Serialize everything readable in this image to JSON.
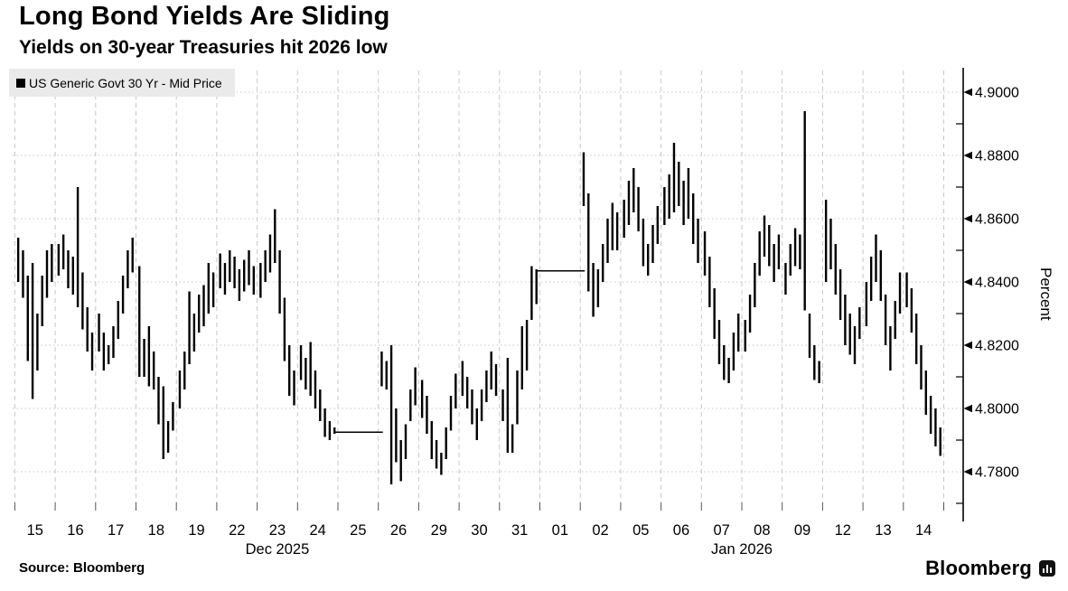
{
  "header": {
    "title": "Long Bond Yields Are Sliding",
    "subtitle": "Yields on 30-year Treasuries hit 2026 low"
  },
  "legend": {
    "marker": "black-square-icon",
    "label": "US Generic Govt 30 Yr - Mid Price"
  },
  "y_axis": {
    "title": "Percent",
    "tick_labels": [
      "4.9000",
      "4.8800",
      "4.8600",
      "4.8400",
      "4.8200",
      "4.8000",
      "4.7800"
    ],
    "tick_values": [
      4.9,
      4.88,
      4.86,
      4.84,
      4.82,
      4.8,
      4.78
    ],
    "minor_tick_values": [
      4.89,
      4.87,
      4.85,
      4.83,
      4.81,
      4.79,
      4.77
    ],
    "side": "right"
  },
  "x_axis": {
    "months": [
      {
        "label": "Dec 2025",
        "center_day_index": 6
      },
      {
        "label": "Jan 2026",
        "center_day_index": 17.5
      }
    ]
  },
  "footer": {
    "source": "Source: Bloomberg",
    "brand": "Bloomberg",
    "brand_icon": "bloomberg-bug-icon"
  },
  "colors": {
    "bars": "#000000",
    "grid": "#c7c7c7",
    "axis": "#000000",
    "legend_bg": "#eaeaea",
    "background": "#ffffff",
    "text": "#000000"
  },
  "chart_data": {
    "type": "bar",
    "subtype": "intraday-high-low-price-bars",
    "title": "Long Bond Yields Are Sliding",
    "series_name": "US Generic Govt 30 Yr - Mid Price",
    "ylabel": "Percent",
    "ylim": [
      4.764,
      4.907
    ],
    "y_gridlines": [
      4.78,
      4.8,
      4.82,
      4.84,
      4.86,
      4.88,
      4.9
    ],
    "grid": true,
    "legend_position": "top-left",
    "days": [
      {
        "label": "15",
        "month": "Dec 2025",
        "bars": [
          [
            4.854,
            4.84
          ],
          [
            4.85,
            4.835
          ],
          [
            4.842,
            4.815
          ],
          [
            4.846,
            4.803
          ],
          [
            4.83,
            4.812
          ],
          [
            4.842,
            4.826
          ],
          [
            4.85,
            4.835
          ],
          [
            4.852,
            4.84
          ]
        ]
      },
      {
        "label": "16",
        "month": "Dec 2025",
        "bars": [
          [
            4.852,
            4.842
          ],
          [
            4.855,
            4.844
          ],
          [
            4.85,
            4.838
          ],
          [
            4.848,
            4.836
          ],
          [
            4.87,
            4.832
          ],
          [
            4.843,
            4.825
          ],
          [
            4.832,
            4.818
          ],
          [
            4.824,
            4.812
          ]
        ]
      },
      {
        "label": "17",
        "month": "Dec 2025",
        "bars": [
          [
            4.83,
            4.818
          ],
          [
            4.824,
            4.812
          ],
          [
            4.82,
            4.814
          ],
          [
            4.826,
            4.816
          ],
          [
            4.834,
            4.822
          ],
          [
            4.842,
            4.83
          ],
          [
            4.85,
            4.838
          ],
          [
            4.854,
            4.843
          ]
        ]
      },
      {
        "label": "18",
        "month": "Dec 2025",
        "bars": [
          [
            4.845,
            4.81
          ],
          [
            4.822,
            4.81
          ],
          [
            4.826,
            4.807
          ],
          [
            4.818,
            4.806
          ],
          [
            4.81,
            4.795
          ],
          [
            4.807,
            4.784
          ],
          [
            4.796,
            4.786
          ],
          [
            4.802,
            4.793
          ]
        ]
      },
      {
        "label": "19",
        "month": "Dec 2025",
        "bars": [
          [
            4.812,
            4.8
          ],
          [
            4.818,
            4.806
          ],
          [
            4.837,
            4.814
          ],
          [
            4.83,
            4.818
          ],
          [
            4.836,
            4.824
          ],
          [
            4.839,
            4.826
          ],
          [
            4.846,
            4.83
          ],
          [
            4.843,
            4.832
          ]
        ]
      },
      {
        "label": "22",
        "month": "Dec 2025",
        "bars": [
          [
            4.849,
            4.838
          ],
          [
            4.846,
            4.836
          ],
          [
            4.85,
            4.84
          ],
          [
            4.848,
            4.838
          ],
          [
            4.844,
            4.834
          ],
          [
            4.847,
            4.837
          ],
          [
            4.85,
            4.839
          ],
          [
            4.845,
            4.836
          ]
        ]
      },
      {
        "label": "23",
        "month": "Dec 2025",
        "bars": [
          [
            4.846,
            4.835
          ],
          [
            4.85,
            4.84
          ],
          [
            4.855,
            4.843
          ],
          [
            4.863,
            4.846
          ],
          [
            4.85,
            4.83
          ],
          [
            4.835,
            4.815
          ],
          [
            4.82,
            4.804
          ],
          [
            4.812,
            4.801
          ]
        ]
      },
      {
        "label": "24",
        "month": "Dec 2025",
        "bars": [
          [
            4.82,
            4.809
          ],
          [
            4.816,
            4.806
          ],
          [
            4.821,
            4.804
          ],
          [
            4.812,
            4.8
          ],
          [
            4.806,
            4.796
          ],
          [
            4.8,
            4.791
          ],
          [
            4.796,
            4.79
          ],
          [
            4.794,
            4.792
          ]
        ]
      },
      {
        "label": "25",
        "month": "Dec 2025",
        "flat": 4.7925,
        "note": "holiday-flat-line"
      },
      {
        "label": "26",
        "month": "Dec 2025",
        "bars": [
          [
            4.818,
            4.807
          ],
          [
            4.815,
            4.806
          ],
          [
            4.82,
            4.776
          ],
          [
            4.8,
            4.783
          ],
          [
            4.79,
            4.777
          ],
          [
            4.795,
            4.784
          ],
          [
            4.806,
            4.796
          ],
          [
            4.813,
            4.801
          ]
        ]
      },
      {
        "label": "29",
        "month": "Dec 2025",
        "bars": [
          [
            4.809,
            4.797
          ],
          [
            4.804,
            4.792
          ],
          [
            4.796,
            4.784
          ],
          [
            4.79,
            4.781
          ],
          [
            4.786,
            4.779
          ],
          [
            4.794,
            4.784
          ],
          [
            4.804,
            4.793
          ],
          [
            4.811,
            4.8
          ]
        ]
      },
      {
        "label": "30",
        "month": "Dec 2025",
        "bars": [
          [
            4.815,
            4.804
          ],
          [
            4.81,
            4.8
          ],
          [
            4.806,
            4.795
          ],
          [
            4.8,
            4.79
          ],
          [
            4.806,
            4.796
          ],
          [
            4.812,
            4.802
          ],
          [
            4.818,
            4.806
          ],
          [
            4.814,
            4.804
          ]
        ]
      },
      {
        "label": "31",
        "month": "Dec 2025",
        "bars": [
          [
            4.806,
            4.796
          ],
          [
            4.816,
            4.786
          ],
          [
            4.795,
            4.786
          ],
          [
            4.812,
            4.795
          ],
          [
            4.826,
            4.806
          ],
          [
            4.828,
            4.812
          ],
          [
            4.845,
            4.828
          ],
          [
            4.844,
            4.833
          ]
        ]
      },
      {
        "label": "01",
        "month": "Jan 2026",
        "flat": 4.8435,
        "note": "holiday-flat-line"
      },
      {
        "label": "02",
        "month": "Jan 2026",
        "bars": [
          [
            4.881,
            4.864
          ],
          [
            4.868,
            4.837
          ],
          [
            4.846,
            4.829
          ],
          [
            4.844,
            4.832
          ],
          [
            4.852,
            4.84
          ],
          [
            4.86,
            4.846
          ],
          [
            4.865,
            4.85
          ],
          [
            4.862,
            4.85
          ]
        ]
      },
      {
        "label": "05",
        "month": "Jan 2026",
        "bars": [
          [
            4.866,
            4.854
          ],
          [
            4.872,
            4.858
          ],
          [
            4.876,
            4.862
          ],
          [
            4.87,
            4.856
          ],
          [
            4.86,
            4.845
          ],
          [
            4.852,
            4.842
          ],
          [
            4.858,
            4.846
          ],
          [
            4.864,
            4.852
          ]
        ]
      },
      {
        "label": "06",
        "month": "Jan 2026",
        "bars": [
          [
            4.87,
            4.858
          ],
          [
            4.874,
            4.86
          ],
          [
            4.884,
            4.862
          ],
          [
            4.878,
            4.864
          ],
          [
            4.872,
            4.858
          ],
          [
            4.876,
            4.86
          ],
          [
            4.868,
            4.852
          ],
          [
            4.86,
            4.846
          ]
        ]
      },
      {
        "label": "07",
        "month": "Jan 2026",
        "bars": [
          [
            4.856,
            4.842
          ],
          [
            4.848,
            4.832
          ],
          [
            4.838,
            4.822
          ],
          [
            4.828,
            4.814
          ],
          [
            4.82,
            4.809
          ],
          [
            4.816,
            4.808
          ],
          [
            4.824,
            4.812
          ],
          [
            4.83,
            4.818
          ]
        ]
      },
      {
        "label": "08",
        "month": "Jan 2026",
        "bars": [
          [
            4.828,
            4.818
          ],
          [
            4.836,
            4.824
          ],
          [
            4.846,
            4.832
          ],
          [
            4.856,
            4.842
          ],
          [
            4.861,
            4.848
          ],
          [
            4.858,
            4.845
          ],
          [
            4.852,
            4.84
          ],
          [
            4.855,
            4.844
          ]
        ]
      },
      {
        "label": "09",
        "month": "Jan 2026",
        "bars": [
          [
            4.846,
            4.836
          ],
          [
            4.852,
            4.842
          ],
          [
            4.857,
            4.845
          ],
          [
            4.855,
            4.844
          ],
          [
            4.894,
            4.831
          ],
          [
            4.83,
            4.816
          ],
          [
            4.82,
            4.809
          ],
          [
            4.815,
            4.808
          ]
        ]
      },
      {
        "label": "12",
        "month": "Jan 2026",
        "bars": [
          [
            4.866,
            4.84
          ],
          [
            4.86,
            4.844
          ],
          [
            4.852,
            4.836
          ],
          [
            4.844,
            4.828
          ],
          [
            4.836,
            4.82
          ],
          [
            4.83,
            4.817
          ],
          [
            4.826,
            4.814
          ],
          [
            4.832,
            4.822
          ]
        ]
      },
      {
        "label": "13",
        "month": "Jan 2026",
        "bars": [
          [
            4.84,
            4.826
          ],
          [
            4.848,
            4.834
          ],
          [
            4.855,
            4.84
          ],
          [
            4.85,
            4.834
          ],
          [
            4.836,
            4.82
          ],
          [
            4.826,
            4.812
          ],
          [
            4.834,
            4.822
          ],
          [
            4.843,
            4.83
          ]
        ]
      },
      {
        "label": "14",
        "month": "Jan 2026",
        "bars": [
          [
            4.843,
            4.832
          ],
          [
            4.838,
            4.824
          ],
          [
            4.83,
            4.814
          ],
          [
            4.82,
            4.806
          ],
          [
            4.812,
            4.798
          ],
          [
            4.804,
            4.792
          ],
          [
            4.8,
            4.788
          ],
          [
            4.794,
            4.785
          ]
        ]
      }
    ]
  }
}
